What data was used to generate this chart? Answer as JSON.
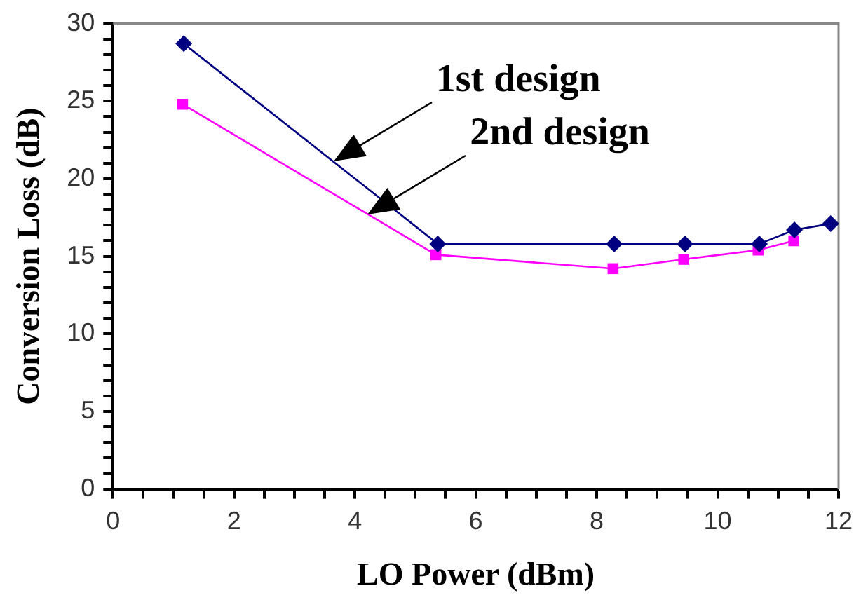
{
  "chart_data": {
    "type": "line",
    "xlabel": "LO Power (dBm)",
    "ylabel": "Conversion Loss (dB)",
    "series": [
      {
        "name": "1st design",
        "color": "#000080",
        "marker": "diamond",
        "x": [
          1.17,
          5.37,
          8.29,
          9.46,
          10.69,
          11.27,
          11.87
        ],
        "values": [
          28.7,
          15.8,
          15.8,
          15.8,
          15.8,
          16.7,
          17.1
        ]
      },
      {
        "name": "2nd design",
        "color": "#ff00ff",
        "marker": "square",
        "x": [
          1.15,
          5.34,
          8.27,
          9.44,
          10.67,
          11.26
        ],
        "values": [
          24.8,
          15.1,
          14.2,
          14.8,
          15.4,
          16.0
        ]
      }
    ],
    "xlim": [
      0,
      12
    ],
    "xticks": [
      0,
      {
        "value": 0.5,
        "label": null
      },
      {
        "value": 1,
        "label": null
      },
      {
        "value": 1.5,
        "label": null
      },
      2,
      {
        "value": 2.5,
        "label": null
      },
      {
        "value": 3,
        "label": null
      },
      {
        "value": 3.5,
        "label": null
      },
      4,
      {
        "value": 4.5,
        "label": null
      },
      {
        "value": 5,
        "label": null
      },
      {
        "value": 5.5,
        "label": null
      },
      6,
      {
        "value": 6.5,
        "label": null
      },
      {
        "value": 7,
        "label": null
      },
      {
        "value": 7.5,
        "label": null
      },
      8,
      {
        "value": 8.5,
        "label": null
      },
      {
        "value": 9,
        "label": null
      },
      {
        "value": 9.5,
        "label": null
      },
      10,
      {
        "value": 10.5,
        "label": null
      },
      {
        "value": 11,
        "label": null
      },
      {
        "value": 11.5,
        "label": null
      },
      12
    ],
    "ylim": [
      0,
      30
    ],
    "yticks": [
      0,
      {
        "value": 1,
        "label": null
      },
      {
        "value": 2,
        "label": null
      },
      {
        "value": 3,
        "label": null
      },
      {
        "value": 4,
        "label": null
      },
      5,
      {
        "value": 6,
        "label": null
      },
      {
        "value": 7,
        "label": null
      },
      {
        "value": 8,
        "label": null
      },
      {
        "value": 9,
        "label": null
      },
      10,
      {
        "value": 11,
        "label": null
      },
      {
        "value": 12,
        "label": null
      },
      {
        "value": 13,
        "label": null
      },
      {
        "value": 14,
        "label": null
      },
      15,
      {
        "value": 16,
        "label": null
      },
      {
        "value": 17,
        "label": null
      },
      {
        "value": 18,
        "label": null
      },
      {
        "value": 19,
        "label": null
      },
      20,
      {
        "value": 21,
        "label": null
      },
      {
        "value": 22,
        "label": null
      },
      {
        "value": 23,
        "label": null
      },
      {
        "value": 24,
        "label": null
      },
      25,
      {
        "value": 26,
        "label": null
      },
      {
        "value": 27,
        "label": null
      },
      {
        "value": 28,
        "label": null
      },
      {
        "value": 29,
        "label": null
      },
      30
    ],
    "grid": false,
    "legend": false,
    "line_style": "solid"
  }
}
